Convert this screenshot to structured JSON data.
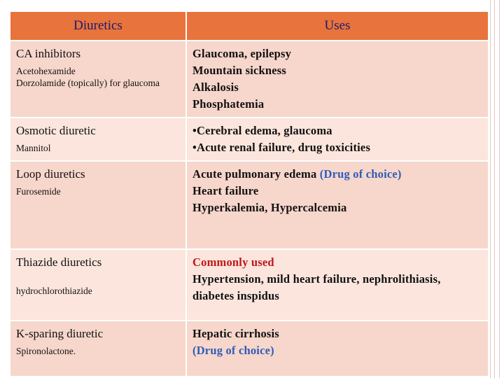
{
  "table": {
    "header": [
      "Diuretics",
      "Uses"
    ],
    "rows": [
      {
        "class": "CA inhibitors",
        "examples": [
          "Acetohexamide",
          "Dorzolamide  (topically) for glaucoma"
        ],
        "uses": [
          [
            {
              "text": "Glaucoma, epilepsy"
            }
          ],
          [
            {
              "text": "Mountain sickness"
            }
          ],
          [
            {
              "text": "Alkalosis"
            }
          ],
          [
            {
              "text": "Phosphatemia"
            }
          ]
        ]
      },
      {
        "class": "Osmotic diuretic",
        "examples": [
          "Mannitol"
        ],
        "bulleted": true,
        "uses": [
          [
            {
              "text": "Cerebral edema, glaucoma"
            }
          ],
          [
            {
              "text": "Acute renal failure, drug toxicities"
            }
          ]
        ]
      },
      {
        "class": "Loop diuretics",
        "examples": [
          "Furosemide"
        ],
        "uses": [
          [
            {
              "text": "Acute pulmonary edema "
            },
            {
              "text": "(Drug of choice)",
              "color": "#2e5cb8"
            }
          ],
          [
            {
              "text": "Heart failure"
            }
          ],
          [
            {
              "text": "Hyperkalemia, Hypercalcemia"
            }
          ]
        ]
      },
      {
        "class": "Thiazide diuretics",
        "examples": [
          "hydrochlorothiazide"
        ],
        "uses": [
          [
            {
              "text": "Commonly used",
              "color": "#c0161b"
            }
          ],
          [
            {
              "text": "Hypertension, mild heart failure, nephrolithiasis, diabetes inspidus"
            }
          ]
        ]
      },
      {
        "class": "K-sparing diuretic",
        "examples": [
          "Spironolactone."
        ],
        "uses": [
          [
            {
              "text": " Hepatic cirrhosis"
            }
          ],
          [
            {
              "text": "(Drug of choice)",
              "color": "#2e5cb8"
            }
          ]
        ]
      }
    ]
  }
}
